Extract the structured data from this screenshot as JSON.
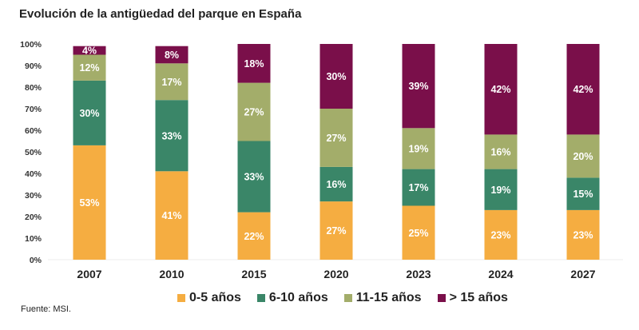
{
  "chart_data": {
    "type": "bar",
    "stacked": true,
    "title": "Evolución de la antigüedad del parque en España",
    "xlabel": "",
    "ylabel": "",
    "ylim": [
      0,
      100
    ],
    "yticks": [
      "0%",
      "10%",
      "20%",
      "30%",
      "40%",
      "50%",
      "60%",
      "70%",
      "80%",
      "90%",
      "100%"
    ],
    "grid": false,
    "legend_position": "bottom",
    "categories": [
      "2007",
      "2010",
      "2015",
      "2020",
      "2023",
      "2024",
      "2027"
    ],
    "series": [
      {
        "name": "0-5 años",
        "color": "#F5AD41",
        "values": [
          53,
          41,
          22,
          27,
          25,
          23,
          23
        ]
      },
      {
        "name": "6-10 años",
        "color": "#3A8668",
        "values": [
          30,
          33,
          33,
          16,
          17,
          19,
          15
        ]
      },
      {
        "name": "11-15 años",
        "color": "#A3AD6A",
        "values": [
          12,
          17,
          27,
          27,
          19,
          16,
          20
        ]
      },
      {
        "name": "> 15 años",
        "color": "#7A0F4A",
        "values": [
          4,
          8,
          18,
          30,
          39,
          42,
          42
        ]
      }
    ],
    "value_suffix": "%"
  },
  "source": "Fuente: MSI."
}
